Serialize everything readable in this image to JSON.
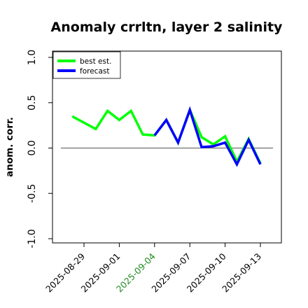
{
  "chart_data": {
    "type": "line",
    "title": "Anomaly crrltn, layer 2 salinity",
    "xlabel": "",
    "ylabel": "anom. corr.",
    "ylim": [
      -1.0,
      1.0
    ],
    "yticks": [
      "-1.0",
      "-0.5",
      "0.0",
      "0.5",
      "1.0"
    ],
    "xticks": [
      "2025-08-29",
      "2025-09-01",
      "2025-09-04",
      "2025-09-07",
      "2025-09-10",
      "2025-09-13"
    ],
    "xtick_colors": [
      "#000000",
      "#000000",
      "#228B22",
      "#000000",
      "#000000",
      "#000000"
    ],
    "reference_line": 0.0,
    "legend_position": "top-left",
    "grid": false,
    "series": [
      {
        "name": "best est.",
        "color": "#00ff00",
        "x": [
          "2025-08-28",
          "2025-08-30",
          "2025-08-31",
          "2025-09-01",
          "2025-09-02",
          "2025-09-03",
          "2025-09-04",
          "2025-09-05",
          "2025-09-06",
          "2025-09-07",
          "2025-09-08",
          "2025-09-09",
          "2025-09-10",
          "2025-09-11",
          "2025-09-12",
          "2025-09-13"
        ],
        "values": [
          0.35,
          0.21,
          0.41,
          0.31,
          0.41,
          0.15,
          0.14,
          0.31,
          0.06,
          0.42,
          0.12,
          0.04,
          0.13,
          -0.15,
          0.1,
          -0.17
        ]
      },
      {
        "name": "forecast",
        "color": "#0000ff",
        "x": [
          "2025-09-04",
          "2025-09-05",
          "2025-09-06",
          "2025-09-07",
          "2025-09-08",
          "2025-09-09",
          "2025-09-10",
          "2025-09-11",
          "2025-09-12",
          "2025-09-13"
        ],
        "values": [
          0.14,
          0.31,
          0.06,
          0.42,
          0.01,
          0.02,
          0.06,
          -0.18,
          0.09,
          -0.18
        ]
      }
    ]
  }
}
